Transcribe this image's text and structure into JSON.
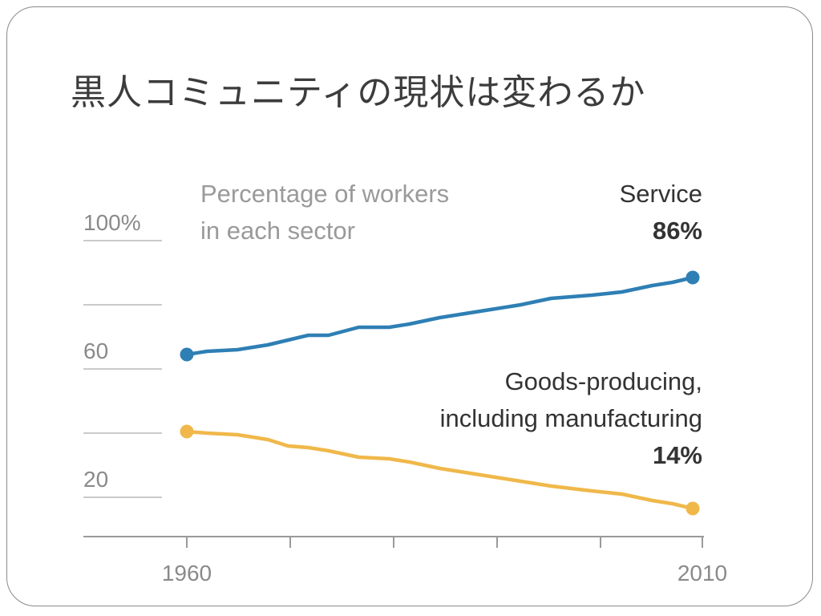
{
  "slide": {
    "title": "黒人コミュニティの現状は変わるか"
  },
  "chart_data": {
    "type": "line",
    "title": "Percentage of workers in each sector",
    "title_lines": [
      "Percentage of workers",
      "in each sector"
    ],
    "x_ticks": [
      "1960",
      "2010"
    ],
    "xlim": [
      1960,
      2010
    ],
    "y_ticks": [
      "100%",
      "60",
      "20"
    ],
    "ylim": [
      0,
      100
    ],
    "grid": "left-stub",
    "series": [
      {
        "name": "Service",
        "end_label": "86%",
        "color": "#2e7fb4",
        "x": [
          1960,
          1962,
          1965,
          1968,
          1970,
          1972,
          1974,
          1977,
          1980,
          1982,
          1985,
          1987,
          1990,
          1993,
          1996,
          2000,
          2003,
          2006,
          2008,
          2010
        ],
        "values": [
          62,
          63,
          63.5,
          65,
          66.5,
          68,
          68,
          70.5,
          70.5,
          71.5,
          73.5,
          74.5,
          76,
          77.5,
          79.5,
          80.5,
          81.5,
          83.5,
          84.5,
          86
        ]
      },
      {
        "name": "Goods-producing, including manufacturing",
        "name_lines": [
          "Goods-producing,",
          "including manufacturing"
        ],
        "end_label": "14%",
        "color": "#f0b84a",
        "x": [
          1960,
          1962,
          1965,
          1968,
          1970,
          1972,
          1974,
          1977,
          1980,
          1982,
          1985,
          1987,
          1990,
          1993,
          1996,
          2000,
          2003,
          2006,
          2008,
          2010
        ],
        "values": [
          38,
          37.5,
          37,
          35.5,
          33.5,
          33,
          32,
          30,
          29.5,
          28.5,
          26.5,
          25.5,
          24,
          22.5,
          21,
          19.5,
          18.5,
          16.5,
          15.5,
          14
        ]
      }
    ]
  }
}
